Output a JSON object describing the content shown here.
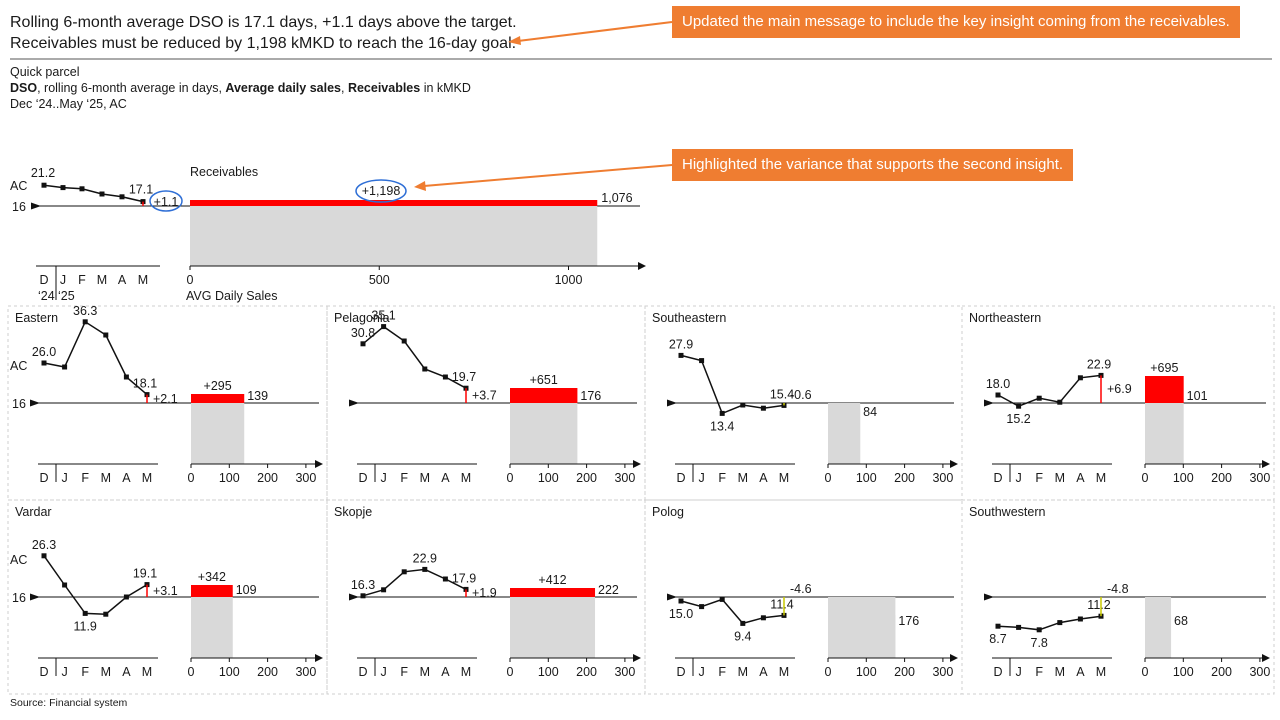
{
  "header": {
    "line1": "Rolling 6-month average DSO is 17.1 days, +1.1 days above the target.",
    "line2": "Receivables must be reduced by 1,198 kMKD to reach the 16-day goal."
  },
  "subtitle": {
    "line1": "Quick parcel",
    "line2_bold1": "DSO",
    "line2_rest1": ", rolling 6-month average in days, ",
    "line2_bold2": "Average daily sales",
    "line2_rest2": ", ",
    "line2_bold3": "Receivables",
    "line2_rest3": " in kMKD",
    "line3": "Dec ‘24..May ‘25, AC"
  },
  "callouts": {
    "top": "Updated the main message to include the key insight coming from the receivables.",
    "middle": "Highlighted the variance that supports the second insight."
  },
  "source": "Source: Financial system",
  "colors": {
    "variance_positive": "#ff0000",
    "variance_negative": "#c8c800",
    "bar_fill": "#d9d9d9",
    "callout": "#ef7d31",
    "highlight_circle": "#2f6fd6"
  },
  "chart_data": [
    {
      "type": "line",
      "title": "",
      "x": [
        "D",
        "J",
        "F",
        "M",
        "A",
        "M"
      ],
      "year_labels": [
        "‘24",
        "‘25"
      ],
      "ac_label": "AC",
      "target": 16,
      "target_label": "16",
      "values": [
        21.2,
        20.6,
        20.3,
        19.0,
        18.3,
        17.1
      ],
      "data_labels": [
        "21.2",
        "",
        "",
        "",
        "",
        "17.1"
      ],
      "variance_label": "+1.1"
    },
    {
      "type": "bar",
      "title": "Receivables",
      "xlabel": "AVG Daily Sales",
      "xlim": [
        0,
        1200
      ],
      "ticks": [
        "0",
        "500",
        "1000"
      ],
      "bar_value": 1076,
      "bar_label": "1,076",
      "variance_value": 1198,
      "variance_label": "+1,198"
    },
    {
      "type": "small_multiples",
      "x": [
        "D",
        "J",
        "F",
        "M",
        "A",
        "M"
      ],
      "target": 16,
      "target_label": "16",
      "ac_label": "AC",
      "bar_ticks": [
        "0",
        "100",
        "200",
        "300"
      ],
      "bar_xlim": [
        0,
        330
      ],
      "regions": [
        {
          "name": "Eastern",
          "values": [
            26.0,
            25.0,
            36.3,
            33.0,
            22.5,
            18.1
          ],
          "labels": [
            "26.0",
            "",
            "36.3",
            "",
            "",
            "18.1"
          ],
          "variance": "+2.1",
          "bar": 139,
          "bar_label": "139",
          "bar_variance": "+295"
        },
        {
          "name": "Pelagonia",
          "values": [
            30.8,
            35.1,
            31.5,
            24.5,
            22.5,
            19.7
          ],
          "labels": [
            "30.8",
            "35.1",
            "",
            "",
            "",
            "19.7"
          ],
          "variance": "+3.7",
          "bar": 176,
          "bar_label": "176",
          "bar_variance": "+651"
        },
        {
          "name": "Southeastern",
          "values": [
            27.9,
            26.6,
            13.4,
            15.5,
            14.7,
            15.4
          ],
          "labels": [
            "27.9",
            "",
            "13.4",
            "",
            "",
            "15.4"
          ],
          "variance": "-0.6",
          "bar": 84,
          "bar_label": "84",
          "bar_variance": ""
        },
        {
          "name": "Northeastern",
          "values": [
            18.0,
            15.2,
            17.2,
            16.2,
            22.3,
            22.9
          ],
          "labels": [
            "18.0",
            "15.2",
            "",
            "",
            "",
            "22.9"
          ],
          "variance": "+6.9",
          "bar": 101,
          "bar_label": "101",
          "bar_variance": "+695"
        },
        {
          "name": "Vardar",
          "values": [
            26.3,
            19.0,
            11.9,
            11.7,
            16.0,
            19.1
          ],
          "labels": [
            "26.3",
            "",
            "11.9",
            "",
            "",
            "19.1"
          ],
          "variance": "+3.1",
          "bar": 109,
          "bar_label": "109",
          "bar_variance": "+342"
        },
        {
          "name": "Skopje",
          "values": [
            16.3,
            17.8,
            22.3,
            22.9,
            20.5,
            17.9
          ],
          "labels": [
            "16.3",
            "",
            "",
            "22.9",
            "",
            "17.9"
          ],
          "variance": "+1.9",
          "bar": 222,
          "bar_label": "222",
          "bar_variance": "+412"
        },
        {
          "name": "Polog",
          "values": [
            15.0,
            13.6,
            15.4,
            9.4,
            10.8,
            11.4
          ],
          "labels": [
            "15.0",
            "",
            "",
            "9.4",
            "",
            "11.4"
          ],
          "variance": "-4.6",
          "bar": 176,
          "bar_label": "176",
          "bar_variance": ""
        },
        {
          "name": "Southwestern",
          "values": [
            8.7,
            8.4,
            7.8,
            9.6,
            10.5,
            11.2
          ],
          "labels": [
            "8.7",
            "",
            "7.8",
            "",
            "",
            "11.2"
          ],
          "variance": "-4.8",
          "bar": 68,
          "bar_label": "68",
          "bar_variance": ""
        }
      ]
    }
  ]
}
